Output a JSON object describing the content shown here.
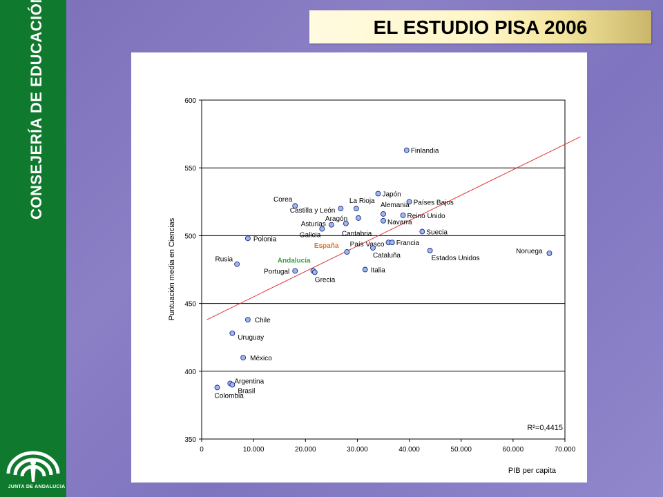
{
  "sidebar": {
    "brand_text": "CONSEJERÍA DE EDUCACIÓN",
    "logo_text": "JUNTA DE ANDALUCIA"
  },
  "header": {
    "title": "EL ESTUDIO PISA 2006"
  },
  "chart_data": {
    "type": "scatter",
    "xlabel": "PIB per capita",
    "ylabel": "Puntuación media en Ciencias",
    "xlim": [
      0,
      70000
    ],
    "ylim": [
      350,
      600
    ],
    "x_ticks": [
      0,
      10000,
      20000,
      30000,
      40000,
      50000,
      60000,
      70000
    ],
    "x_tick_labels": [
      "0",
      "10.000",
      "20.000",
      "30.000",
      "40.000",
      "50.000",
      "60.000",
      "70.000"
    ],
    "y_ticks": [
      350,
      400,
      450,
      500,
      550,
      600
    ],
    "y_tick_labels": [
      "350",
      "400",
      "450",
      "500",
      "550",
      "600"
    ],
    "grid": "horizontal",
    "trendline": {
      "x": [
        1000,
        73000
      ],
      "y": [
        438,
        573
      ],
      "color": "#e03030"
    },
    "r2_label": "R²=0,4415",
    "marker_color": "#9fb8e8",
    "points": [
      {
        "label": "Finlandia",
        "x": 39500,
        "y": 563,
        "color": "#000000"
      },
      {
        "label": "Japón",
        "x": 34000,
        "y": 531,
        "color": "#000000"
      },
      {
        "label": "Países Bajos",
        "x": 40000,
        "y": 525,
        "color": "#000000"
      },
      {
        "label": "Corea",
        "x": 18000,
        "y": 522,
        "color": "#000000"
      },
      {
        "label": "La Rioja",
        "x": 29800,
        "y": 520,
        "color": "#000000"
      },
      {
        "label": "Castilla y León",
        "x": 26800,
        "y": 520,
        "color": "#000000"
      },
      {
        "label": "Alemania",
        "x": 35000,
        "y": 516,
        "color": "#000000"
      },
      {
        "label": "Reino Unido",
        "x": 38800,
        "y": 515,
        "color": "#000000"
      },
      {
        "label": "Aragón",
        "x": 30200,
        "y": 513,
        "color": "#000000"
      },
      {
        "label": "Asturias",
        "x": 25000,
        "y": 508,
        "color": "#000000"
      },
      {
        "label": "Navarra",
        "x": 35000,
        "y": 511,
        "color": "#000000"
      },
      {
        "label": "Cantabria",
        "x": 27800,
        "y": 509,
        "color": "#000000"
      },
      {
        "label": "Suecia",
        "x": 42500,
        "y": 503,
        "color": "#000000"
      },
      {
        "label": "Galicia",
        "x": 23200,
        "y": 505,
        "color": "#000000"
      },
      {
        "label": "Polonia",
        "x": 8900,
        "y": 498,
        "color": "#000000"
      },
      {
        "label": "País Vasco",
        "x": 36000,
        "y": 495,
        "color": "#000000"
      },
      {
        "label": "Francia",
        "x": 36700,
        "y": 495,
        "color": "#000000"
      },
      {
        "label": "España",
        "x": 28000,
        "y": 488,
        "color": "#e07820"
      },
      {
        "label": "Cataluña",
        "x": 33000,
        "y": 491,
        "color": "#000000"
      },
      {
        "label": "Estados Unidos",
        "x": 44000,
        "y": 489,
        "color": "#000000"
      },
      {
        "label": "Noruega",
        "x": 67000,
        "y": 487,
        "color": "#000000"
      },
      {
        "label": "Rusia",
        "x": 6800,
        "y": 479,
        "color": "#000000"
      },
      {
        "label": "Andalucía",
        "x": 21500,
        "y": 474,
        "color": "#3aa040"
      },
      {
        "label": "Portugal",
        "x": 18000,
        "y": 474,
        "color": "#000000"
      },
      {
        "label": "Grecia",
        "x": 21800,
        "y": 473,
        "color": "#000000"
      },
      {
        "label": "Italia",
        "x": 31500,
        "y": 475,
        "color": "#000000"
      },
      {
        "label": "Chile",
        "x": 8900,
        "y": 438,
        "color": "#000000"
      },
      {
        "label": "Uruguay",
        "x": 5900,
        "y": 428,
        "color": "#000000"
      },
      {
        "label": "México",
        "x": 8000,
        "y": 410,
        "color": "#000000"
      },
      {
        "label": "Argentina",
        "x": 5500,
        "y": 391,
        "color": "#000000"
      },
      {
        "label": "Brasil",
        "x": 5900,
        "y": 390,
        "color": "#000000"
      },
      {
        "label": "Colombia",
        "x": 3000,
        "y": 388,
        "color": "#000000"
      }
    ]
  }
}
